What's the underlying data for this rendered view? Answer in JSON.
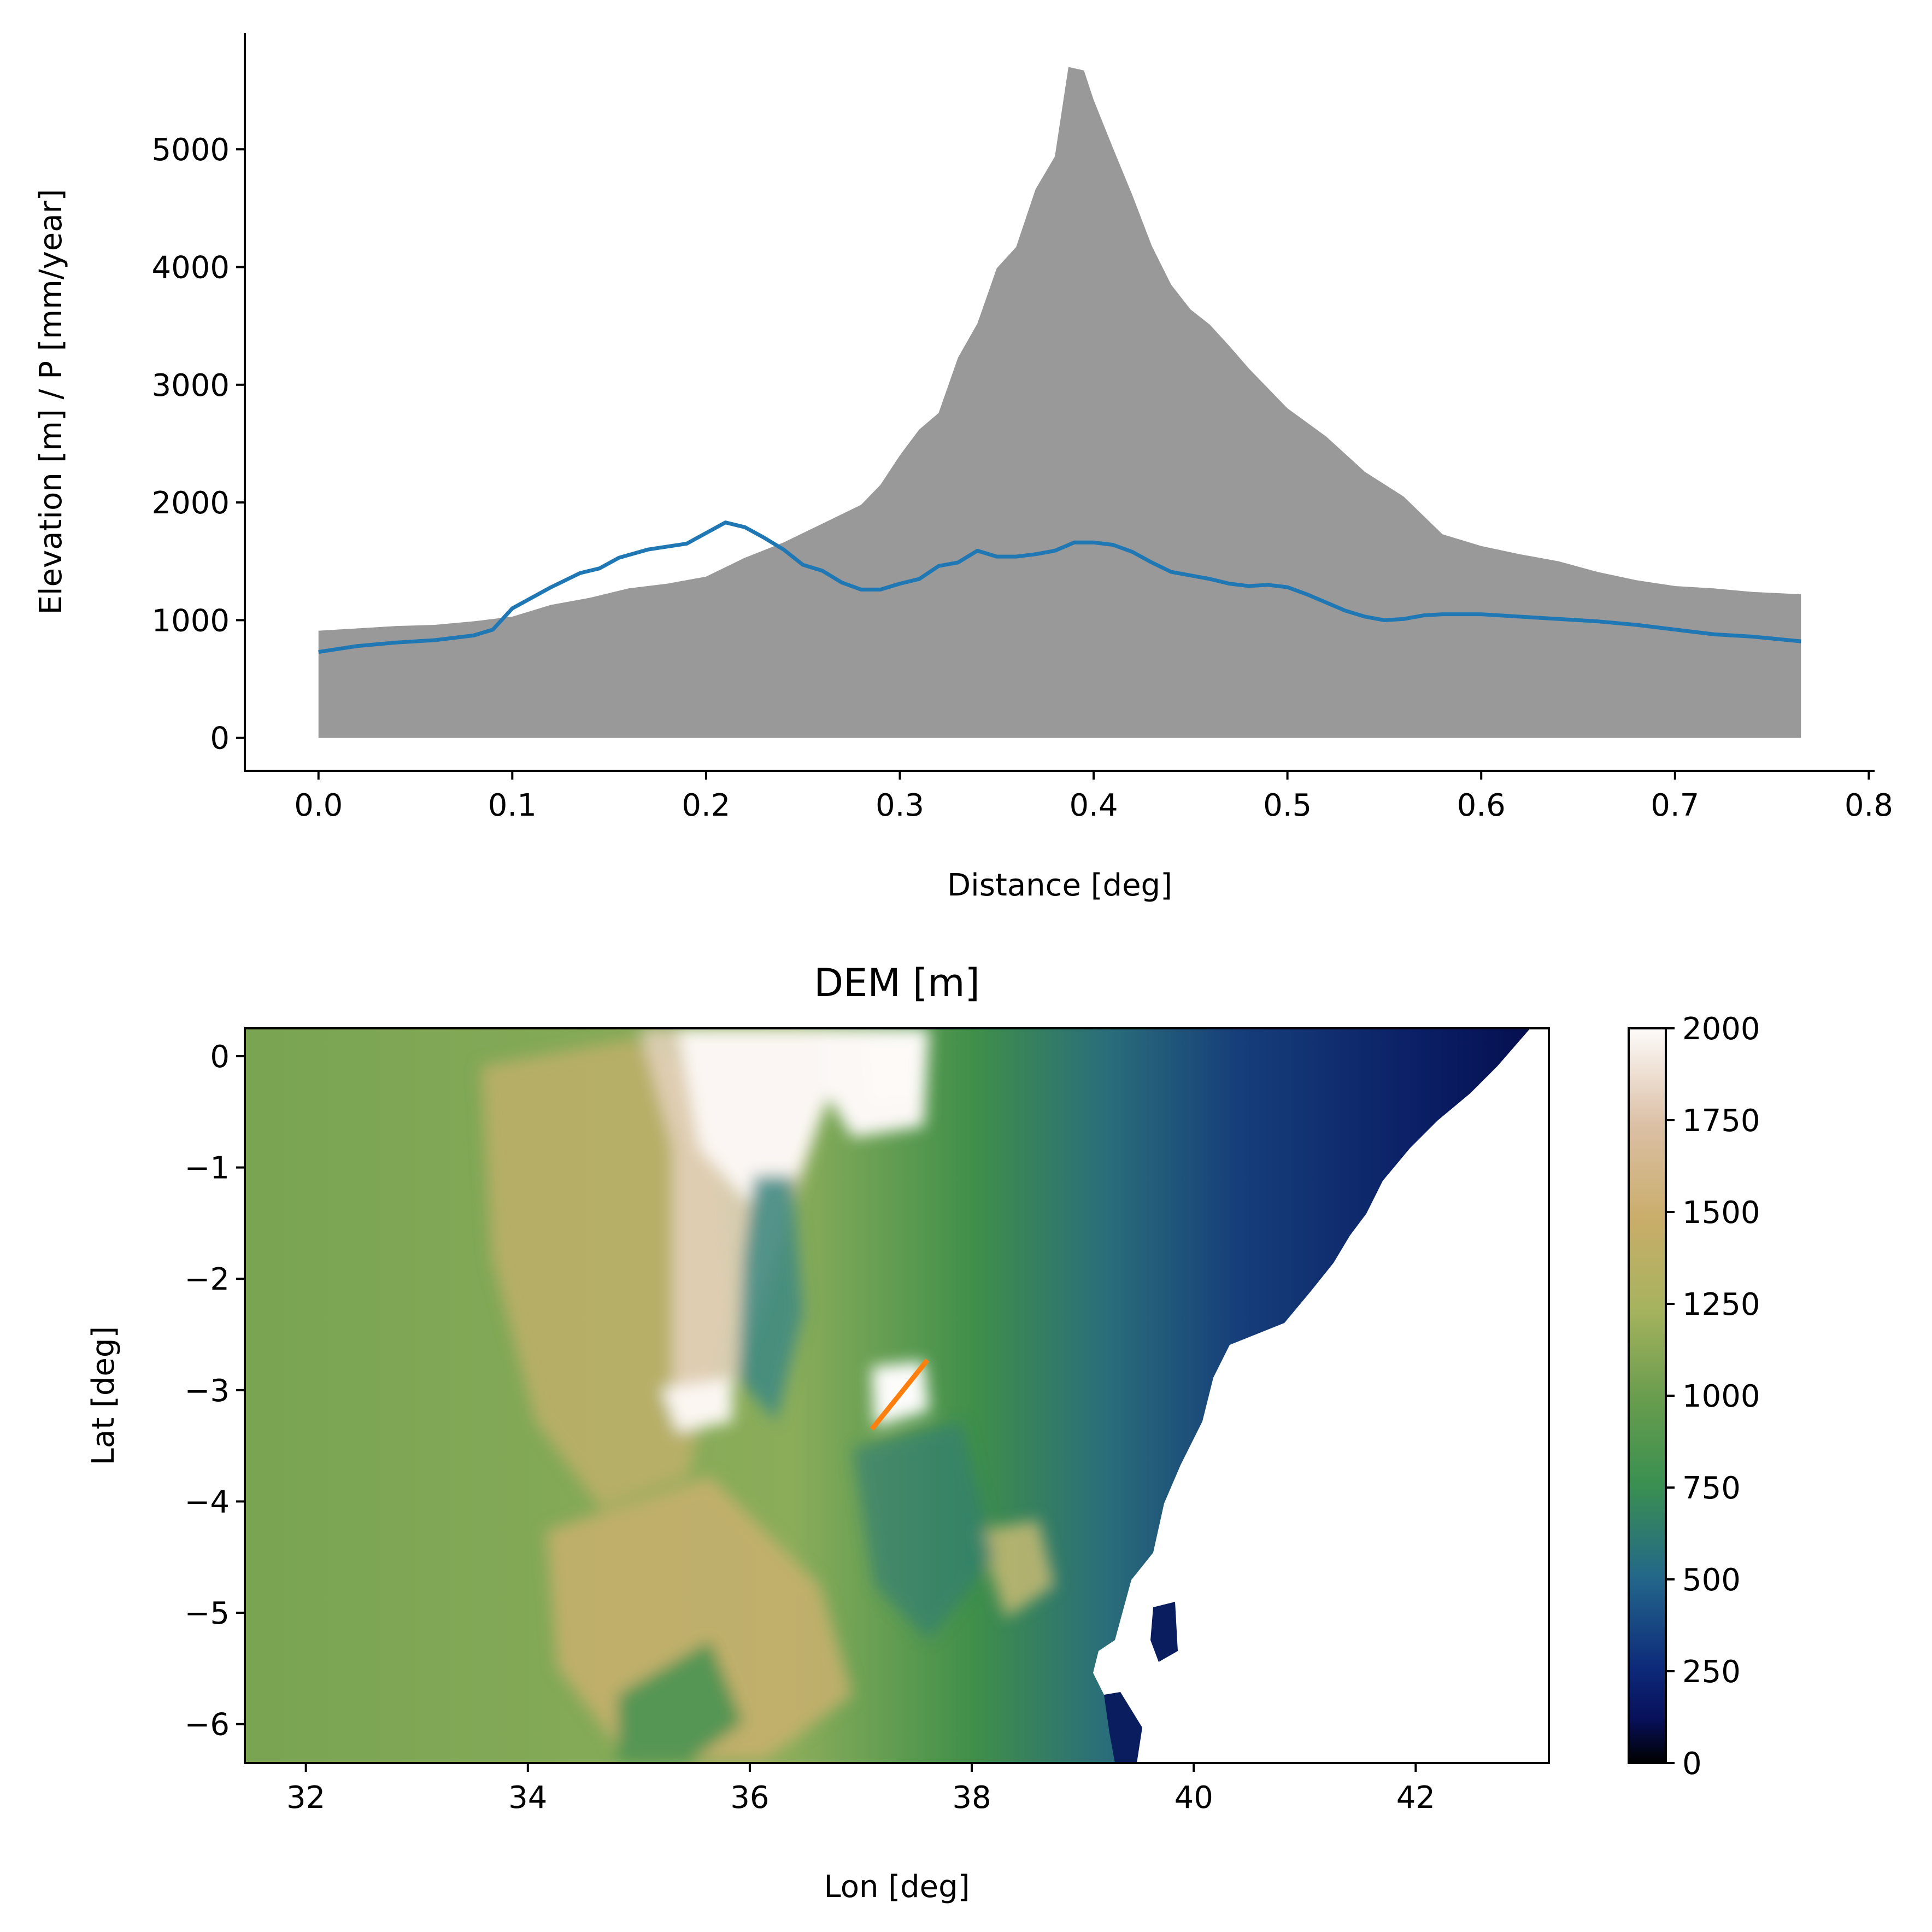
{
  "chart_data": [
    {
      "type": "area",
      "xlabel": "Distance [deg]",
      "ylabel": "Elevation [m] / P [mm/year]",
      "xlim": [
        -0.038,
        0.803
      ],
      "ylim": [
        -280,
        5990
      ],
      "xticks": [
        0.0,
        0.1,
        0.2,
        0.3,
        0.4,
        0.5,
        0.6,
        0.7,
        0.8
      ],
      "xtick_labels": [
        "0.0",
        "0.1",
        "0.2",
        "0.3",
        "0.4",
        "0.5",
        "0.6",
        "0.7",
        "0.8"
      ],
      "yticks": [
        0,
        1000,
        2000,
        3000,
        4000,
        5000
      ],
      "ytick_labels": [
        "0",
        "1000",
        "2000",
        "3000",
        "4000",
        "5000"
      ],
      "grid": false,
      "series": [
        {
          "kind": "area",
          "color": "#999999",
          "x": [
            0.0,
            0.02,
            0.04,
            0.06,
            0.08,
            0.1,
            0.12,
            0.14,
            0.16,
            0.18,
            0.2,
            0.22,
            0.24,
            0.26,
            0.28,
            0.29,
            0.3,
            0.31,
            0.32,
            0.33,
            0.34,
            0.35,
            0.36,
            0.37,
            0.38,
            0.387,
            0.395,
            0.4,
            0.41,
            0.42,
            0.43,
            0.44,
            0.45,
            0.46,
            0.47,
            0.48,
            0.5,
            0.52,
            0.54,
            0.56,
            0.58,
            0.6,
            0.62,
            0.64,
            0.66,
            0.68,
            0.7,
            0.72,
            0.74,
            0.765
          ],
          "y": [
            910,
            930,
            950,
            960,
            990,
            1030,
            1130,
            1190,
            1270,
            1310,
            1370,
            1530,
            1660,
            1820,
            1980,
            2150,
            2400,
            2620,
            2760,
            3230,
            3520,
            3990,
            4170,
            4660,
            4940,
            5700,
            5670,
            5420,
            5010,
            4610,
            4180,
            3850,
            3640,
            3510,
            3330,
            3140,
            2800,
            2560,
            2260,
            2050,
            1730,
            1630,
            1560,
            1500,
            1410,
            1340,
            1290,
            1270,
            1240,
            1220
          ]
        },
        {
          "kind": "line",
          "color": "#1f77b4",
          "x": [
            0.0,
            0.02,
            0.04,
            0.06,
            0.08,
            0.09,
            0.1,
            0.12,
            0.135,
            0.145,
            0.155,
            0.17,
            0.19,
            0.2,
            0.21,
            0.22,
            0.23,
            0.24,
            0.25,
            0.26,
            0.27,
            0.28,
            0.29,
            0.3,
            0.31,
            0.32,
            0.33,
            0.34,
            0.35,
            0.36,
            0.37,
            0.38,
            0.39,
            0.4,
            0.41,
            0.42,
            0.43,
            0.44,
            0.45,
            0.46,
            0.47,
            0.48,
            0.49,
            0.5,
            0.51,
            0.52,
            0.53,
            0.54,
            0.55,
            0.56,
            0.57,
            0.58,
            0.6,
            0.62,
            0.64,
            0.66,
            0.68,
            0.7,
            0.72,
            0.74,
            0.765
          ],
          "y": [
            730,
            780,
            810,
            830,
            870,
            920,
            1100,
            1280,
            1400,
            1440,
            1530,
            1600,
            1650,
            1740,
            1830,
            1790,
            1700,
            1600,
            1470,
            1420,
            1320,
            1260,
            1260,
            1310,
            1350,
            1460,
            1490,
            1590,
            1540,
            1540,
            1560,
            1590,
            1660,
            1660,
            1640,
            1580,
            1490,
            1410,
            1380,
            1350,
            1310,
            1290,
            1300,
            1280,
            1220,
            1150,
            1080,
            1030,
            1000,
            1010,
            1040,
            1050,
            1050,
            1030,
            1010,
            990,
            960,
            920,
            880,
            860,
            820
          ]
        }
      ]
    },
    {
      "type": "heatmap",
      "title": "DEM [m]",
      "xlabel": "Lon [deg]",
      "ylabel": "Lat [deg]",
      "xlim": [
        31.45,
        43.2
      ],
      "ylim": [
        -6.35,
        0.25
      ],
      "xticks": [
        32,
        34,
        36,
        38,
        40,
        42
      ],
      "xtick_labels": [
        "32",
        "34",
        "36",
        "38",
        "40",
        "42"
      ],
      "yticks": [
        0,
        -1,
        -2,
        -3,
        -4,
        -5,
        -6
      ],
      "ytick_labels": [
        "0",
        "−1",
        "−2",
        "−3",
        "−4",
        "−5",
        "−6"
      ],
      "colormap": "gist_earth",
      "colorbar": {
        "range": [
          0,
          2000
        ],
        "ticks": [
          0,
          250,
          500,
          750,
          1000,
          1250,
          1500,
          1750,
          2000
        ],
        "tick_labels": [
          "0",
          "250",
          "500",
          "750",
          "1000",
          "1250",
          "1500",
          "1750",
          "2000"
        ]
      },
      "transect": {
        "color": "#ff7f0e",
        "lon": [
          37.1,
          37.6
        ],
        "lat": [
          -3.35,
          -2.73
        ]
      }
    }
  ]
}
